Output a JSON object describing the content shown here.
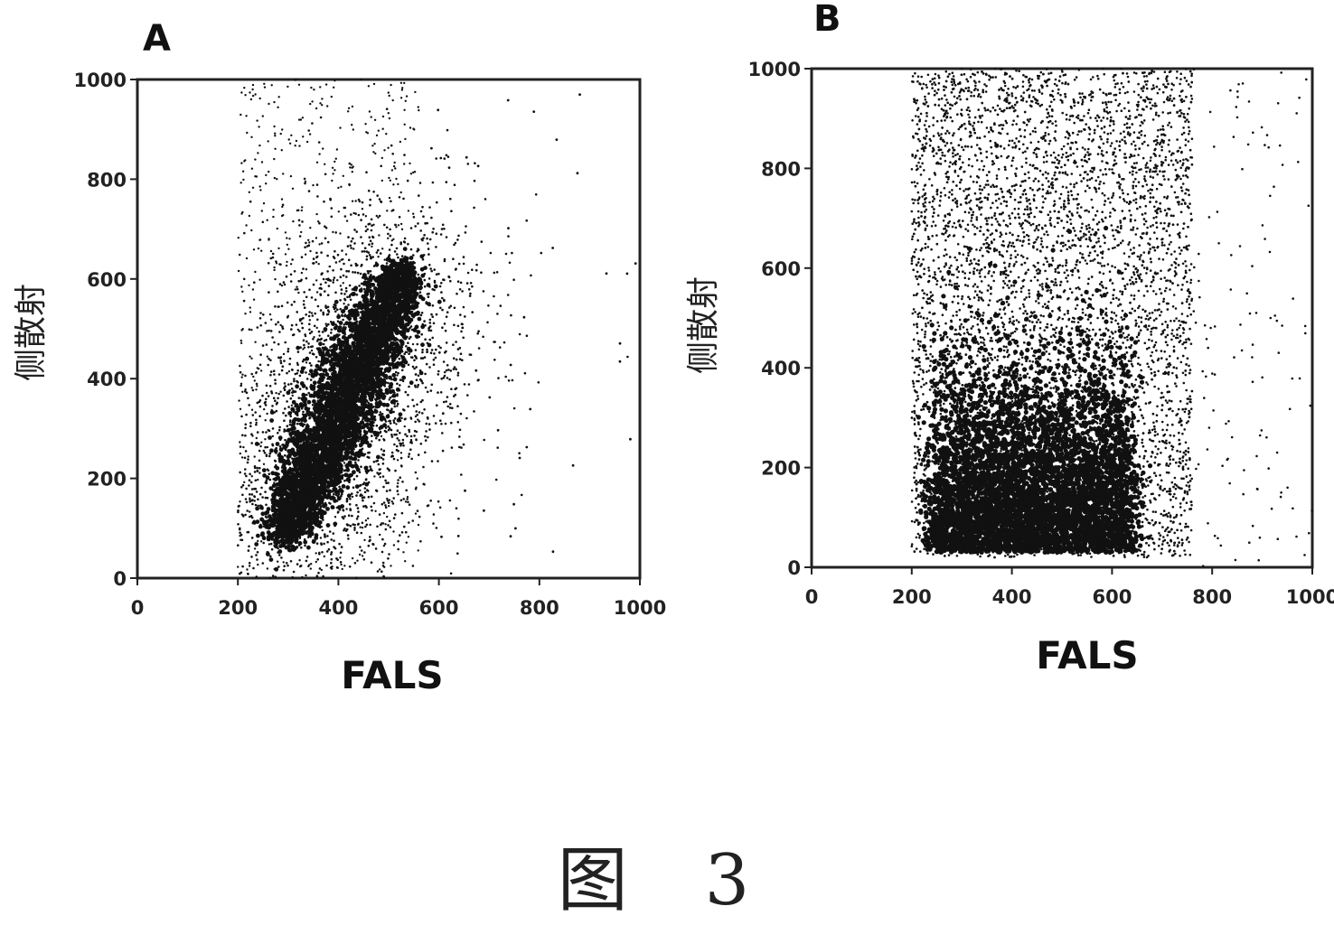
{
  "figure_caption": "图 3",
  "chart_data": [
    {
      "type": "scatter",
      "panel_label": "A",
      "xlabel": "FALS",
      "ylabel": "侧散射",
      "xlim": [
        0,
        1000
      ],
      "ylim": [
        0,
        1000
      ],
      "xticks": [
        "0",
        "200",
        "400",
        "600",
        "800",
        "1000"
      ],
      "yticks": [
        "0",
        "200",
        "400",
        "600",
        "800",
        "1000"
      ],
      "grid": false,
      "point_color": "#111111",
      "description_of_distribution": {
        "x_gate_min": 200,
        "dense_population": {
          "from": [
            290,
            80
          ],
          "to": [
            530,
            620
          ]
        }
      }
    },
    {
      "type": "scatter",
      "panel_label": "B",
      "xlabel": "FALS",
      "ylabel": "侧散射",
      "xlim": [
        0,
        1000
      ],
      "ylim": [
        0,
        1000
      ],
      "xticks": [
        "0",
        "200",
        "400",
        "600",
        "800",
        "1000"
      ],
      "yticks": [
        "0",
        "200",
        "400",
        "600",
        "800",
        "1000"
      ],
      "grid": false,
      "point_color": "#111111",
      "description_of_distribution": {
        "x_gate_min": 200,
        "dense_population": {
          "x_range": [
            240,
            640
          ],
          "y_range": [
            30,
            420
          ]
        }
      }
    }
  ]
}
